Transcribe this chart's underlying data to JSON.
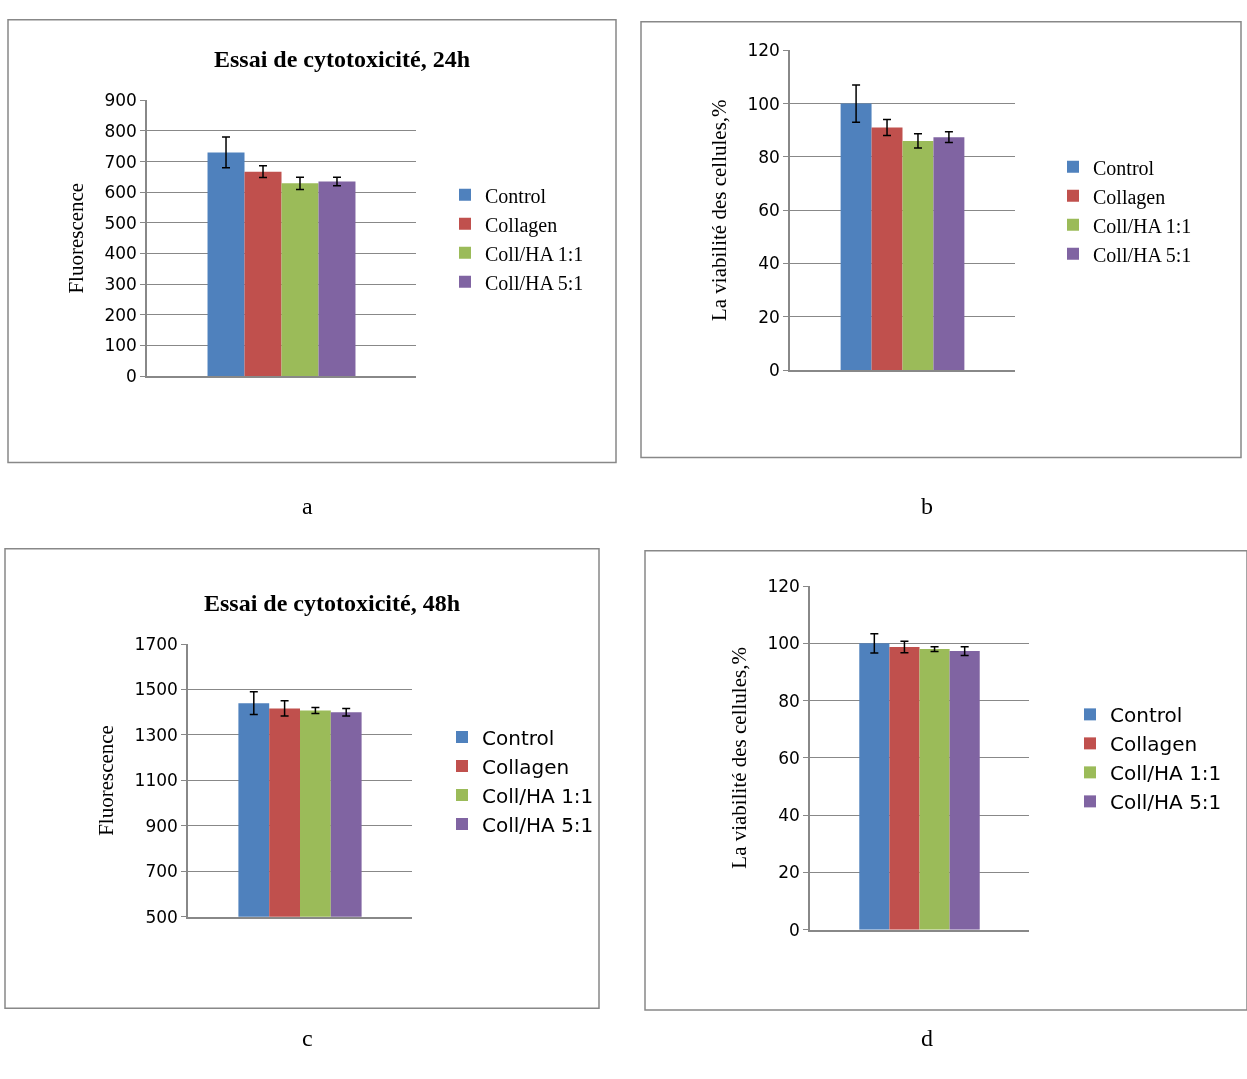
{
  "chart_data": [
    {
      "type": "bar",
      "title": "Essai de cytotoxicité, 24h",
      "ylabel": "Fluorescence",
      "categories": [
        null
      ],
      "series": [
        {
          "name": "Control",
          "color": "#4f81bd",
          "values": [
            730
          ],
          "errors": [
            50
          ]
        },
        {
          "name": "Collagen",
          "color": "#c0504d",
          "values": [
            667
          ],
          "errors": [
            19
          ]
        },
        {
          "name": "Coll/HA 1:1",
          "color": "#9bbb59",
          "values": [
            629
          ],
          "errors": [
            20
          ]
        },
        {
          "name": "Coll/HA 5:1",
          "color": "#8064a2",
          "values": [
            635
          ],
          "errors": [
            14
          ]
        }
      ],
      "ylim": [
        0,
        900
      ],
      "yticks": [
        0,
        100,
        200,
        300,
        400,
        500,
        600,
        700,
        800,
        900
      ],
      "grid": "y",
      "legend": "right",
      "annotations": [
        "a"
      ]
    },
    {
      "type": "bar",
      "ylabel": "La viabilité des cellules,%",
      "categories": [
        null
      ],
      "series": [
        {
          "name": "Control",
          "color": "#4f81bd",
          "values": [
            100
          ],
          "errors": [
            7
          ]
        },
        {
          "name": "Collagen",
          "color": "#c0504d",
          "values": [
            91
          ],
          "errors": [
            3
          ]
        },
        {
          "name": "Coll/HA 1:1",
          "color": "#9bbb59",
          "values": [
            86
          ],
          "errors": [
            2.7
          ]
        },
        {
          "name": "Coll/HA 5:1",
          "color": "#8064a2",
          "values": [
            87.4
          ],
          "errors": [
            2
          ]
        }
      ],
      "ylim": [
        0,
        120
      ],
      "yticks": [
        0,
        20,
        40,
        60,
        80,
        100,
        120
      ],
      "grid": "y",
      "legend": "right",
      "annotations": [
        "b"
      ]
    },
    {
      "type": "bar",
      "title": "Essai de cytotoxicité, 48h",
      "ylabel": "Fluorescence",
      "categories": [
        null
      ],
      "series": [
        {
          "name": "Control",
          "color": "#4f81bd",
          "values": [
            1440
          ],
          "errors": [
            50
          ]
        },
        {
          "name": "Collagen",
          "color": "#c0504d",
          "values": [
            1417
          ],
          "errors": [
            34
          ]
        },
        {
          "name": "Coll/HA 1:1",
          "color": "#9bbb59",
          "values": [
            1408
          ],
          "errors": [
            13
          ]
        },
        {
          "name": "Coll/HA 5:1",
          "color": "#8064a2",
          "values": [
            1400
          ],
          "errors": [
            16
          ]
        }
      ],
      "ylim": [
        500,
        1700
      ],
      "yticks": [
        500,
        700,
        900,
        1100,
        1300,
        1500,
        1700
      ],
      "grid": "y",
      "legend": "right",
      "annotations": [
        "c"
      ]
    },
    {
      "type": "bar",
      "ylabel": "La viabilité des cellules,%",
      "categories": [
        null
      ],
      "series": [
        {
          "name": "Control",
          "color": "#4f81bd",
          "values": [
            100
          ],
          "errors": [
            3.4
          ]
        },
        {
          "name": "Collagen",
          "color": "#c0504d",
          "values": [
            98.7
          ],
          "errors": [
            2
          ]
        },
        {
          "name": "Coll/HA 1:1",
          "color": "#9bbb59",
          "values": [
            98
          ],
          "errors": [
            0.8
          ]
        },
        {
          "name": "Coll/HA 5:1",
          "color": "#8064a2",
          "values": [
            97.3
          ],
          "errors": [
            1.5
          ]
        }
      ],
      "ylim": [
        0,
        120
      ],
      "yticks": [
        0,
        20,
        40,
        60,
        80,
        100,
        120
      ],
      "grid": "y",
      "legend": "right",
      "annotations": [
        "d"
      ]
    }
  ]
}
